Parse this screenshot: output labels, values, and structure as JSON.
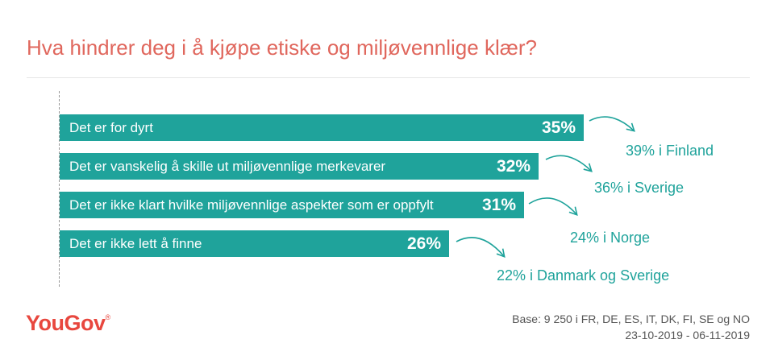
{
  "chart_data": {
    "type": "bar",
    "orientation": "horizontal",
    "title": "Hva hindrer deg i å kjøpe etiske og miljøvennlige klær?",
    "categories": [
      "Det er for dyrt",
      "Det er vanskelig å skille ut miljøvennlige merkevarer",
      "Det er ikke klart hvilke miljøvennlige aspekter som er oppfylt",
      "Det er ikke lett å finne"
    ],
    "values": [
      35,
      32,
      31,
      26
    ],
    "value_labels": [
      "35%",
      "32%",
      "31%",
      "26%"
    ],
    "annotations": [
      "39% i Finland",
      "36% i Sverige",
      "24% i Norge",
      "22% i Danmark og Sverige"
    ],
    "xlim": [
      0,
      35
    ],
    "grid": false,
    "colors": {
      "bar": "#1fa39b",
      "title": "#e0675d",
      "annotation": "#1fa39b"
    }
  },
  "footer": {
    "logo": "YouGov",
    "logo_mark": "®",
    "base_line1": "Base: 9 250 i FR, DE, ES, IT, DK, FI, SE og NO",
    "base_line2": "23-10-2019 - 06-11-2019"
  }
}
